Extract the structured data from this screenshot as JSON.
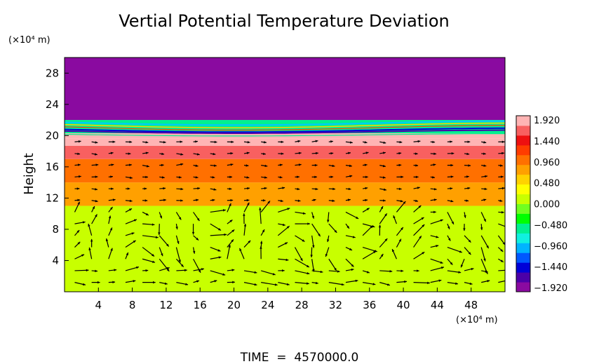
{
  "chart_data": {
    "type": "heatmap",
    "title": "Vertial Potential Temperature Deviation",
    "ylabel": "Height",
    "y_unit": "(×10⁴ m)",
    "x_unit": "(×10⁴ m)",
    "xlim": [
      0,
      52
    ],
    "ylim": [
      0,
      30
    ],
    "x_ticks": [
      "4",
      "8",
      "12",
      "16",
      "20",
      "24",
      "28",
      "32",
      "36",
      "40",
      "44",
      "48"
    ],
    "y_ticks": [
      "4",
      "8",
      "12",
      "16",
      "20",
      "24",
      "28"
    ],
    "x_tick_values": [
      4,
      8,
      12,
      16,
      20,
      24,
      28,
      32,
      36,
      40,
      44,
      48
    ],
    "y_tick_values": [
      4,
      8,
      12,
      16,
      20,
      24,
      28
    ],
    "colorbar": {
      "labels": [
        "1.920",
        "1.440",
        "0.960",
        "0.480",
        "0.000",
        "−0.480",
        "−0.960",
        "−1.440",
        "−1.920"
      ],
      "min": -1.92,
      "max": 1.92,
      "colors": [
        "#8a0aa0",
        "#4b00a8",
        "#0000d8",
        "#0058ff",
        "#00b4ff",
        "#10f0e0",
        "#00f090",
        "#00ff00",
        "#70ff20",
        "#c8ff00",
        "#ffff00",
        "#ffd200",
        "#ffa000",
        "#ff7000",
        "#ff3c00",
        "#ee1010",
        "#f86060",
        "#ffb4b4"
      ]
    },
    "layers": [
      {
        "y0": 0,
        "y1": 11,
        "value": 0.0
      },
      {
        "y0": 11,
        "y1": 14,
        "value": 0.8
      },
      {
        "y0": 14,
        "y1": 17,
        "value": 1.0
      },
      {
        "y0": 17,
        "y1": 18.7,
        "value": 1.5
      },
      {
        "y0": 18.7,
        "y1": 19.6,
        "value": 1.8
      },
      {
        "y0": 19.6,
        "y1": 20.3,
        "value": 1.9
      },
      {
        "y0": 20.3,
        "y1": 22,
        "value": -0.6
      },
      {
        "y0": 22,
        "y1": 30,
        "value": -1.92
      }
    ],
    "time_label": "TIME  =  4570000.0"
  }
}
